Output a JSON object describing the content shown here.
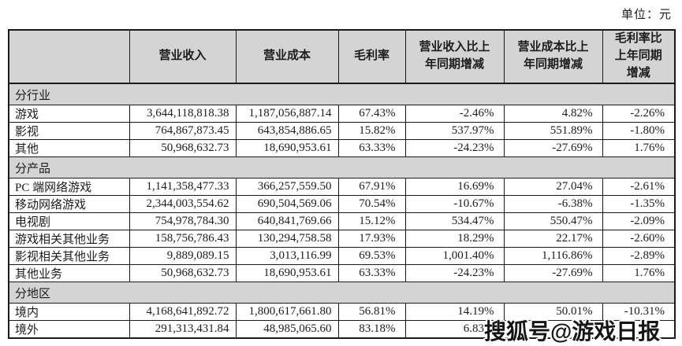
{
  "unit_label": "单位：元",
  "table": {
    "columns": [
      "",
      "营业收入",
      "营业成本",
      "毛利率",
      "营业收入比上\n年同期增减",
      "营业成本比上\n年同期增减",
      "毛利率比\n上年同期\n增减"
    ],
    "sections": [
      {
        "title": "分行业",
        "rows": [
          [
            "游戏",
            "3,644,118,818.38",
            "1,187,056,887.14",
            "67.43%",
            "-2.46%",
            "4.82%",
            "-2.26%"
          ],
          [
            "影视",
            "764,867,873.45",
            "643,854,886.65",
            "15.82%",
            "537.97%",
            "551.89%",
            "-1.80%"
          ],
          [
            "其他",
            "50,968,632.73",
            "18,690,953.61",
            "63.33%",
            "-24.23%",
            "-27.69%",
            "1.76%"
          ]
        ]
      },
      {
        "title": "分产品",
        "rows": [
          [
            "PC 端网络游戏",
            "1,141,358,477.33",
            "366,257,559.50",
            "67.91%",
            "16.69%",
            "27.04%",
            "-2.61%"
          ],
          [
            "移动网络游戏",
            "2,344,003,554.62",
            "690,504,569.06",
            "70.54%",
            "-10.67%",
            "-6.38%",
            "-1.35%"
          ],
          [
            "电视剧",
            "754,978,784.30",
            "640,841,769.66",
            "15.12%",
            "534.47%",
            "550.47%",
            "-2.09%"
          ],
          [
            "游戏相关其他业务",
            "158,756,786.43",
            "130,294,758.58",
            "17.93%",
            "18.29%",
            "22.17%",
            "-2.60%"
          ],
          [
            "影视相关其他业务",
            "9,889,089.15",
            "3,013,116.99",
            "69.53%",
            "1,001.40%",
            "1,116.86%",
            "-2.89%"
          ],
          [
            "其他业务",
            "50,968,632.73",
            "18,690,953.61",
            "63.33%",
            "-24.23%",
            "-27.69%",
            "1.76%"
          ]
        ]
      },
      {
        "title": "分地区",
        "rows": [
          [
            "境内",
            "4,168,641,892.72",
            "1,800,617,661.80",
            "56.81%",
            "14.19%",
            "50.01%",
            "-10.31%"
          ],
          [
            "境外",
            "291,313,431.84",
            "48,985,065.60",
            "83.18%",
            "6.83%",
            "-1",
            ""
          ]
        ]
      }
    ]
  },
  "watermark": "搜狐号@游戏日报"
}
